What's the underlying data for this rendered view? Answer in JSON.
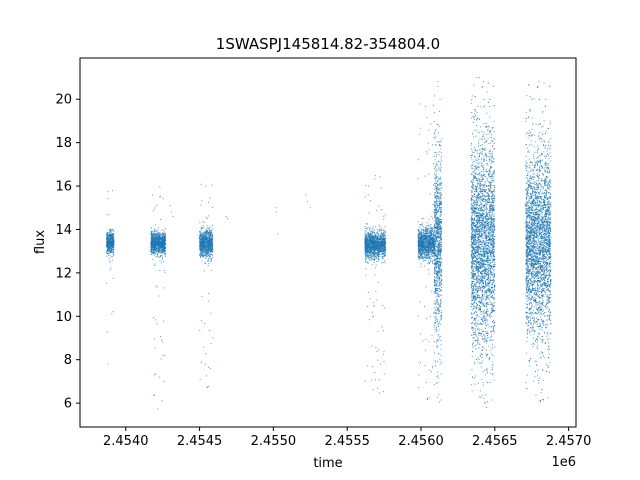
{
  "chart_data": {
    "type": "scatter",
    "title": "1SWASPJ145814.82-354804.0",
    "xlabel": "time",
    "ylabel": "flux",
    "x_offset_label": "1e6",
    "xlim": [
      2.45369,
      2.45705
    ],
    "ylim": [
      4.9,
      21.9
    ],
    "x_ticks": [
      2.454,
      2.4545,
      2.455,
      2.4555,
      2.456,
      2.4565,
      2.457
    ],
    "x_tick_labels": [
      "2.4540",
      "2.4545",
      "2.4550",
      "2.4555",
      "2.4560",
      "2.4565",
      "2.4570"
    ],
    "y_ticks": [
      6,
      8,
      10,
      12,
      14,
      16,
      18,
      20
    ],
    "y_tick_labels": [
      "6",
      "8",
      "10",
      "12",
      "14",
      "16",
      "18",
      "20"
    ],
    "grid": false,
    "marker_color": "#1f77b4",
    "series": [
      {
        "segments": [
          {
            "x_start": 2.45387,
            "x_end": 2.45392,
            "median": 13.4,
            "spread": 0.25,
            "low": 7.5,
            "high": 16.0
          },
          {
            "x_start": 2.45417,
            "x_end": 2.45427,
            "median": 13.35,
            "spread": 0.25,
            "low": 5.7,
            "high": 16.5
          },
          {
            "x_start": 2.4545,
            "x_end": 2.45459,
            "median": 13.35,
            "spread": 0.3,
            "low": 6.6,
            "high": 16.3
          },
          {
            "x_start": 2.45562,
            "x_end": 2.45576,
            "median": 13.3,
            "spread": 0.3,
            "low": 6.3,
            "high": 16.6
          },
          {
            "x_start": 2.45598,
            "x_end": 2.45609,
            "median": 13.35,
            "spread": 0.35,
            "low": 6.0,
            "high": 20.1
          },
          {
            "x_start": 2.45609,
            "x_end": 2.45614,
            "median": 13.4,
            "spread": 2.0,
            "low": 5.8,
            "high": 21.0
          },
          {
            "x_start": 2.45634,
            "x_end": 2.4565,
            "median": 13.4,
            "spread": 2.3,
            "low": 5.8,
            "high": 21.0
          },
          {
            "x_start": 2.45671,
            "x_end": 2.45688,
            "median": 13.4,
            "spread": 2.0,
            "low": 5.9,
            "high": 21.0
          }
        ],
        "isolated": [
          {
            "x": 2.45468,
            "y": 14.6
          },
          {
            "x": 2.45469,
            "y": 14.5
          },
          {
            "x": 2.45502,
            "y": 15.0
          },
          {
            "x": 2.45502,
            "y": 14.8
          },
          {
            "x": 2.45503,
            "y": 13.8
          },
          {
            "x": 2.45522,
            "y": 15.6
          },
          {
            "x": 2.45523,
            "y": 15.3
          },
          {
            "x": 2.45525,
            "y": 15.0
          },
          {
            "x": 2.4543,
            "y": 15.1
          },
          {
            "x": 2.45431,
            "y": 14.8
          },
          {
            "x": 2.45432,
            "y": 14.6
          }
        ]
      }
    ]
  }
}
